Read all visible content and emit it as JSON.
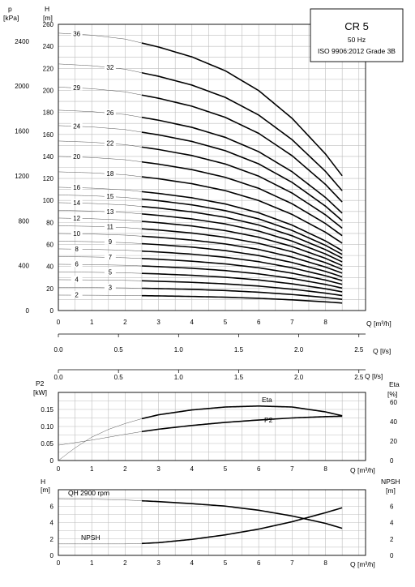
{
  "chart_data": [
    {
      "type": "line",
      "title": "CR 5",
      "subtitle": "50 Hz",
      "standard": "ISO 9906:2012 Grade 3B",
      "y_left_label": "p",
      "y_left_unit": "[kPa]",
      "y_right_label": "H",
      "y_right_unit": "[m]",
      "x_label": "Q [m³/h]",
      "x2_label": "Q [l/s]",
      "xlim": [
        0,
        9.2
      ],
      "ylim": [
        0,
        260
      ],
      "x_ticks": [
        "0",
        "1",
        "2",
        "3",
        "4",
        "5",
        "6",
        "7",
        "8"
      ],
      "x2_ticks": [
        "0.0",
        "0.5",
        "1.0",
        "1.5",
        "2.0",
        "2.5"
      ],
      "y_ticks": [
        "0",
        "20",
        "40",
        "60",
        "80",
        "100",
        "120",
        "140",
        "160",
        "180",
        "200",
        "220",
        "240",
        "260"
      ],
      "p_ticks": [
        "0",
        "400",
        "800",
        "1200",
        "1600",
        "2000",
        "2400"
      ],
      "x_solid_start": 2.5,
      "x_end": 8.5,
      "stages": [
        "2",
        "3",
        "4",
        "5",
        "6",
        "7",
        "8",
        "9",
        "10",
        "11",
        "12",
        "13",
        "14",
        "15",
        "16",
        "18",
        "20",
        "22",
        "24",
        "26",
        "29",
        "32",
        "36"
      ],
      "curve_profile": {
        "x": [
          0,
          1,
          2,
          2.5,
          3,
          4,
          5,
          6,
          7,
          8,
          8.5
        ],
        "h_per_stage": [
          7.0,
          6.95,
          6.85,
          6.75,
          6.65,
          6.4,
          6.05,
          5.55,
          4.85,
          3.95,
          3.4
        ]
      }
    },
    {
      "type": "line",
      "y_left_label": "P2",
      "y_left_unit": "[kW]",
      "y_right_label": "Eta",
      "y_right_unit": "[%]",
      "x_label": "Q [m³/h]",
      "x_top_label": "Q [l/s]",
      "xlim": [
        0,
        9.2
      ],
      "ylim": [
        0,
        0.2
      ],
      "x_ticks": [
        "0",
        "1",
        "2",
        "3",
        "4",
        "5",
        "6",
        "7",
        "8"
      ],
      "x_top_ticks": [
        "0.0",
        "0.5",
        "1.0",
        "1.5",
        "2.0",
        "2.5"
      ],
      "y_ticks": [
        "0",
        "0.05",
        "0.10",
        "0.15"
      ],
      "eta_ticks": [
        "0",
        "20",
        "40",
        "60"
      ],
      "series": [
        {
          "name": "Eta",
          "axis": "right",
          "x": [
            0,
            0.5,
            1,
            1.5,
            2,
            2.5,
            3,
            4,
            5,
            6,
            7,
            8,
            8.5
          ],
          "y": [
            0,
            13,
            24,
            32,
            38,
            43,
            47,
            52,
            55,
            56,
            55,
            50,
            46
          ]
        },
        {
          "name": "P2",
          "axis": "left",
          "x": [
            0,
            1,
            2,
            2.5,
            3,
            4,
            5,
            6,
            7,
            8,
            8.5
          ],
          "y": [
            0.045,
            0.06,
            0.077,
            0.085,
            0.092,
            0.103,
            0.112,
            0.119,
            0.125,
            0.129,
            0.13
          ]
        }
      ]
    },
    {
      "type": "line",
      "y_left_label": "H",
      "y_left_unit": "[m]",
      "y_right_label": "NPSH",
      "y_right_unit": "[m]",
      "x_label": "Q [m³/h]",
      "xlim": [
        0,
        9.2
      ],
      "ylim": [
        0,
        8
      ],
      "x_ticks": [
        "0",
        "1",
        "2",
        "3",
        "4",
        "5",
        "6",
        "7",
        "8"
      ],
      "y_ticks": [
        "0",
        "2",
        "4",
        "6"
      ],
      "npsh_ticks": [
        "0",
        "2",
        "4",
        "6"
      ],
      "series": [
        {
          "name": "QH 2900 rpm",
          "x": [
            0,
            1,
            2,
            2.5,
            3,
            4,
            5,
            6,
            7,
            8,
            8.5
          ],
          "y": [
            6.9,
            6.85,
            6.75,
            6.65,
            6.55,
            6.3,
            6.0,
            5.5,
            4.8,
            3.9,
            3.3
          ]
        },
        {
          "name": "NPSH",
          "x": [
            0,
            1,
            2,
            2.5,
            3,
            4,
            5,
            6,
            7,
            8,
            8.5
          ],
          "y": [
            1.4,
            1.4,
            1.4,
            1.45,
            1.55,
            1.95,
            2.5,
            3.2,
            4.1,
            5.2,
            5.8
          ]
        }
      ]
    }
  ]
}
